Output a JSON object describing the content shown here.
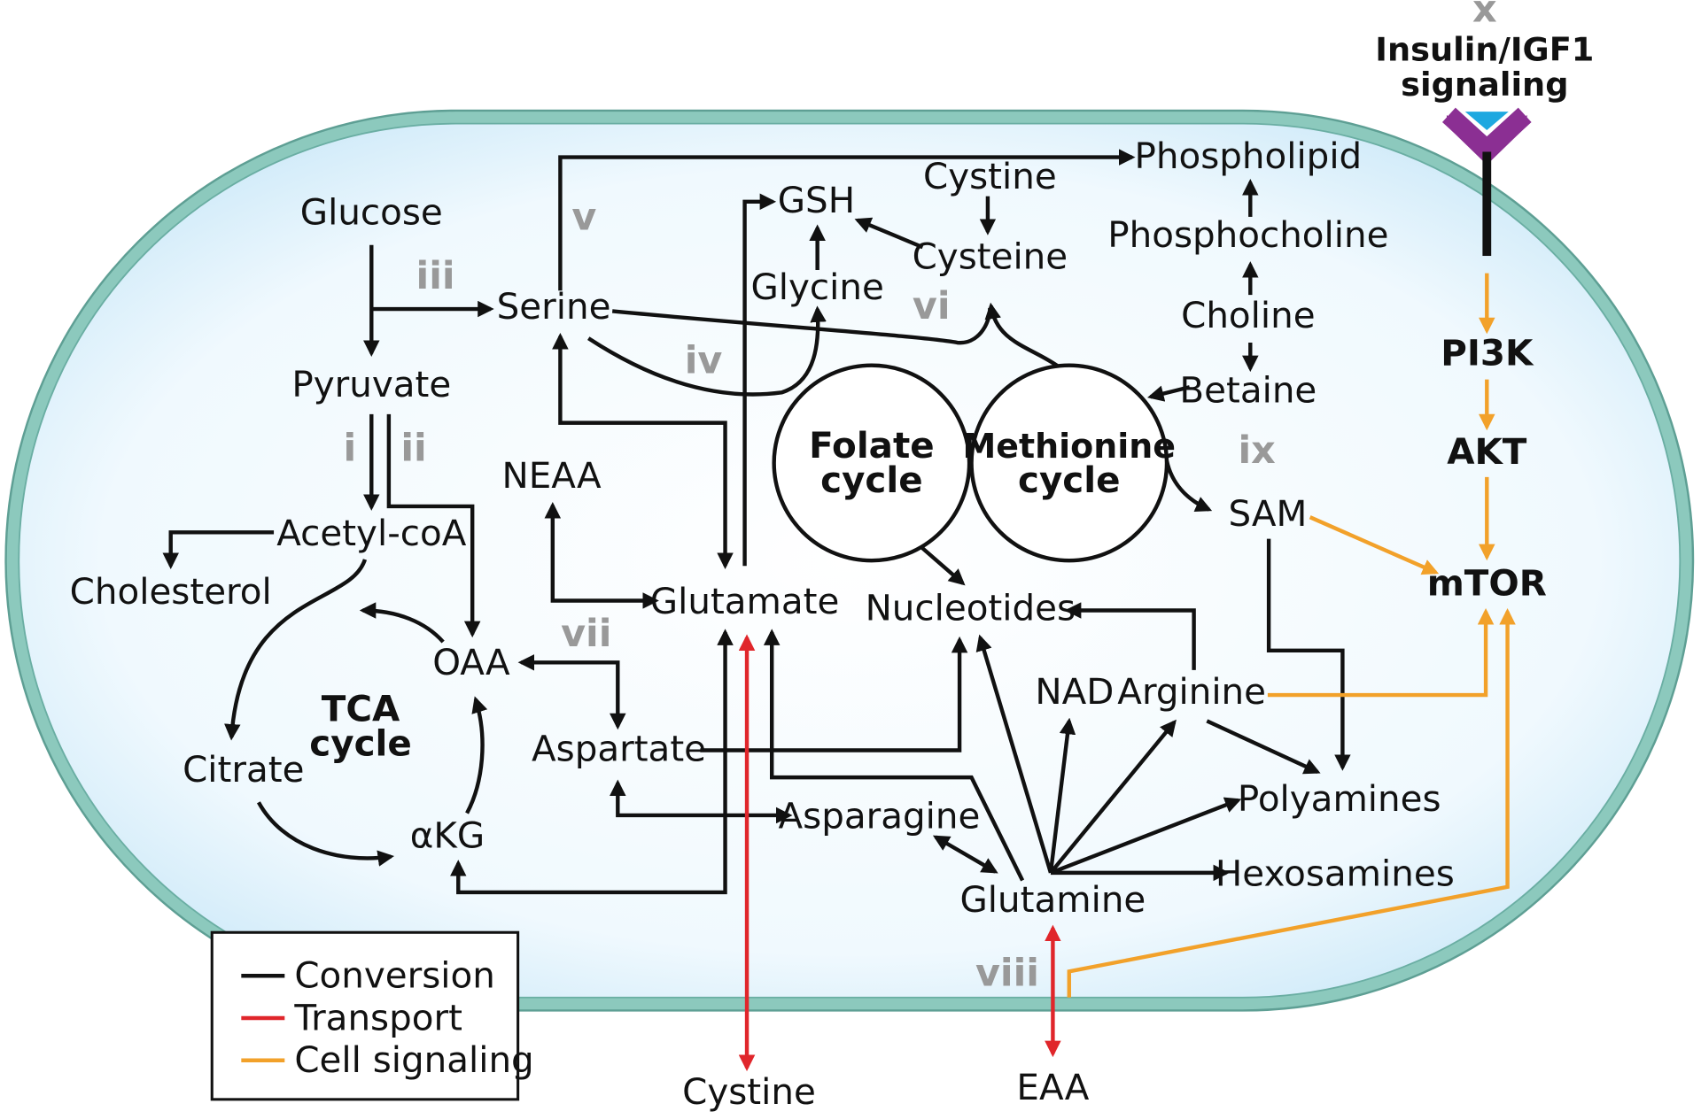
{
  "nodes": {
    "glucose": "Glucose",
    "pyruvate": "Pyruvate",
    "acetyl_coa": "Acetyl-coA",
    "cholesterol": "Cholesterol",
    "oaa": "OAA",
    "citrate": "Citrate",
    "akg": "αKG",
    "tca_line1": "TCA",
    "tca_line2": "cycle",
    "serine": "Serine",
    "neaa": "NEAA",
    "glutamate": "Glutamate",
    "aspartate": "Aspartate",
    "asparagine": "Asparagine",
    "glutamine": "Glutamine",
    "cystine_bottom": "Cystine",
    "eaa": "EAA",
    "gsh": "GSH",
    "glycine": "Glycine",
    "cystine_top": "Cystine",
    "cysteine": "Cysteine",
    "phospholipid": "Phospholipid",
    "phosphocholine": "Phosphocholine",
    "choline": "Choline",
    "betaine": "Betaine",
    "sam": "SAM",
    "folate_line1": "Folate",
    "folate_line2": "cycle",
    "methionine_line1": "Methionine",
    "methionine_line2": "cycle",
    "nucleotides": "Nucleotides",
    "nad": "NAD",
    "arginine": "Arginine",
    "polyamines": "Polyamines",
    "hexosamines": "Hexosamines",
    "insulin_line1": "Insulin/IGF1",
    "insulin_line2": "signaling",
    "pi3k": "PI3K",
    "akt": "AKT",
    "mtor": "mTOR"
  },
  "roman_labels": {
    "i": "i",
    "ii": "ii",
    "iii": "iii",
    "iv": "iv",
    "v": "v",
    "vi": "vi",
    "vii": "vii",
    "viii": "viii",
    "ix": "ix",
    "x": "x"
  },
  "legend": {
    "items": [
      {
        "label": "Conversion",
        "color": "#111111"
      },
      {
        "label": "Transport",
        "color": "#e0262b"
      },
      {
        "label": "Cell signaling",
        "color": "#f2a12a"
      }
    ]
  },
  "colors": {
    "conversion": "#111111",
    "transport": "#e0262b",
    "signaling": "#f2a12a",
    "membrane": "#8cc9bd",
    "cytoplasm": "#d9effb",
    "roman": "#999999",
    "receptor": "#8b2f93",
    "ligand": "#1ea8e0"
  }
}
